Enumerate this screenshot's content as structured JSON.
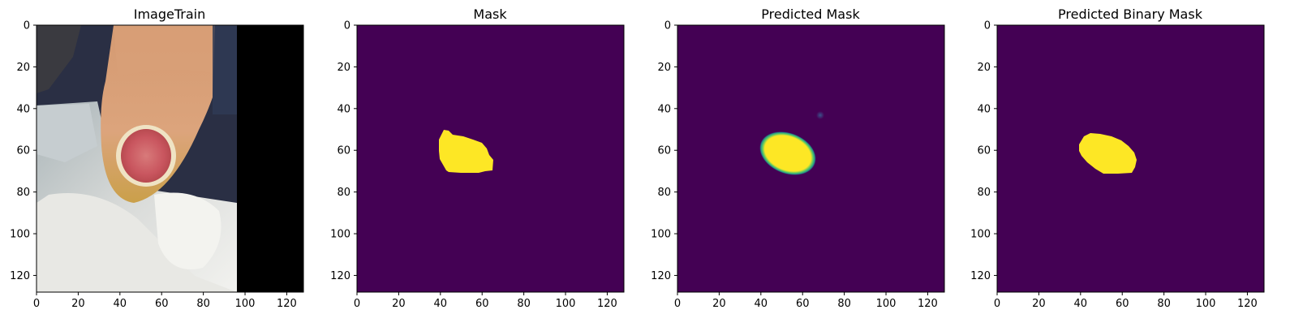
{
  "panels": [
    {
      "title": "ImageTrain",
      "kind": "photo"
    },
    {
      "title": "Mask",
      "kind": "mask-binary"
    },
    {
      "title": "Predicted Mask",
      "kind": "mask-soft"
    },
    {
      "title": "Predicted Binary Mask",
      "kind": "mask-binary"
    }
  ],
  "axes": {
    "x_ticks": [
      "0",
      "20",
      "40",
      "60",
      "80",
      "100",
      "120"
    ],
    "y_ticks": [
      "0",
      "20",
      "40",
      "60",
      "80",
      "100",
      "120"
    ],
    "x_tick_values": [
      0,
      20,
      40,
      60,
      80,
      100,
      120
    ],
    "y_tick_values": [
      0,
      20,
      40,
      60,
      80,
      100,
      120
    ],
    "xlim": [
      0,
      128
    ],
    "ylim": [
      128,
      0
    ]
  },
  "colors": {
    "background_purple": "#440154",
    "mask_yellow": "#fde725",
    "edge_teal": "#21918c"
  }
}
